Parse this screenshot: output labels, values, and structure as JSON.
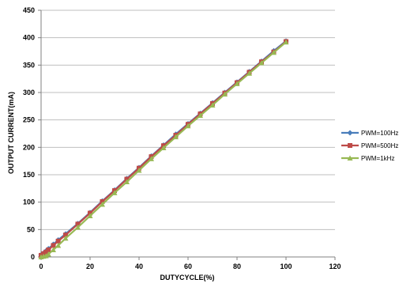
{
  "chart_data": {
    "type": "line",
    "title": "",
    "xlabel": "DUTYCYCLE(%)",
    "ylabel": "OUTPUT CURRENT(mA)",
    "xlim": [
      0,
      120
    ],
    "ylim": [
      0,
      450
    ],
    "xticks": [
      0,
      20,
      40,
      60,
      80,
      100,
      120
    ],
    "yticks": [
      0,
      50,
      100,
      150,
      200,
      250,
      300,
      350,
      400,
      450
    ],
    "grid": "horizontal",
    "legend_position": "right",
    "series": [
      {
        "name": "PWM=100Hz",
        "color": "#4a7ebb",
        "marker": "diamond",
        "x": [
          0,
          1,
          2,
          3,
          5,
          7,
          10,
          15,
          20,
          25,
          30,
          35,
          40,
          45,
          50,
          55,
          60,
          65,
          70,
          75,
          80,
          85,
          90,
          95,
          100
        ],
        "y": [
          4,
          7,
          11,
          15,
          23,
          31,
          42,
          61,
          81,
          102,
          122,
          143,
          163,
          184,
          204,
          224,
          243,
          262,
          281,
          300,
          319,
          338,
          357,
          376,
          394
        ]
      },
      {
        "name": "PWM=500Hz",
        "color": "#be4b48",
        "marker": "square",
        "x": [
          0,
          1,
          2,
          3,
          5,
          7,
          10,
          15,
          20,
          25,
          30,
          35,
          40,
          45,
          50,
          55,
          60,
          65,
          70,
          75,
          80,
          85,
          90,
          95,
          100
        ],
        "y": [
          3,
          6,
          9,
          13,
          21,
          29,
          40,
          60,
          80,
          101,
          121,
          142,
          162,
          183,
          203,
          222,
          242,
          261,
          280,
          299,
          318,
          337,
          356,
          374,
          393
        ]
      },
      {
        "name": "PWM=1kHz",
        "color": "#98b954",
        "marker": "triangle",
        "x": [
          0,
          1,
          2,
          3,
          5,
          7,
          10,
          15,
          20,
          25,
          30,
          35,
          40,
          45,
          50,
          55,
          60,
          65,
          70,
          75,
          80,
          85,
          90,
          95,
          100
        ],
        "y": [
          0,
          1,
          2,
          5,
          13,
          21,
          34,
          54,
          75,
          96,
          117,
          137,
          158,
          179,
          199,
          219,
          239,
          258,
          277,
          297,
          316,
          335,
          354,
          373,
          392
        ]
      }
    ]
  }
}
